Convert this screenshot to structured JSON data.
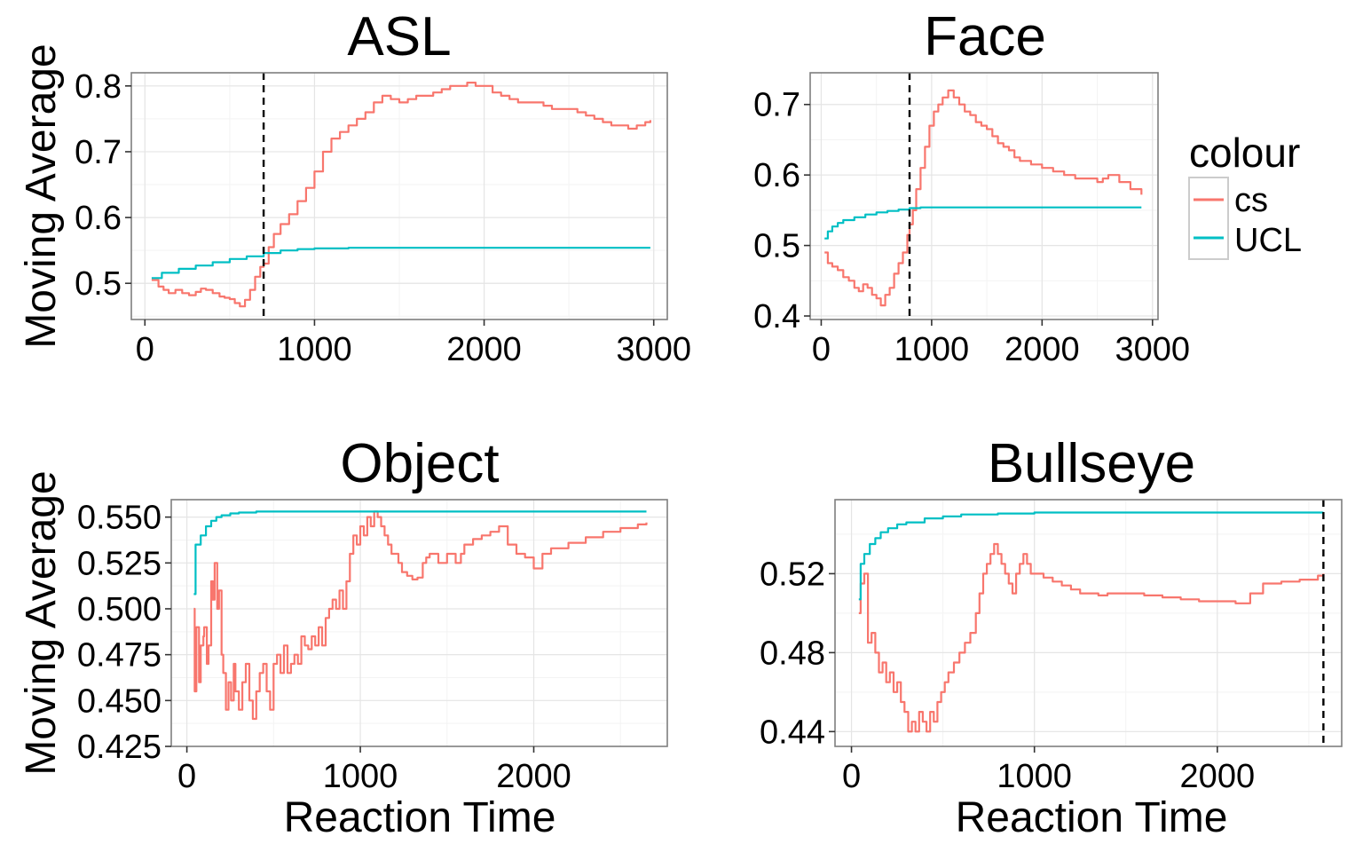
{
  "chart_data": [
    {
      "type": "line",
      "title": "ASL",
      "xlabel": "",
      "ylabel": "Moving Average",
      "xlim": [
        -80,
        3080
      ],
      "ylim": [
        0.445,
        0.82
      ],
      "xticks": [
        0,
        1000,
        2000,
        3000
      ],
      "xtick_labels": [
        "0",
        "1000",
        "2000",
        "3000"
      ],
      "yticks": [
        0.5,
        0.6,
        0.7,
        0.8
      ],
      "ytick_labels": [
        "0.5",
        "0.6",
        "0.7",
        "0.8"
      ],
      "vline": 700,
      "grid": true,
      "series": [
        {
          "name": "cs",
          "color": "#F8766D",
          "x": [
            40,
            80,
            110,
            140,
            180,
            220,
            260,
            300,
            330,
            360,
            400,
            440,
            470,
            500,
            530,
            560,
            590,
            620,
            650,
            680,
            700,
            730,
            760,
            800,
            850,
            900,
            950,
            1000,
            1050,
            1100,
            1150,
            1200,
            1250,
            1300,
            1350,
            1400,
            1450,
            1500,
            1550,
            1600,
            1650,
            1700,
            1750,
            1800,
            1850,
            1900,
            1950,
            2000,
            2050,
            2100,
            2150,
            2200,
            2250,
            2300,
            2350,
            2400,
            2450,
            2500,
            2550,
            2600,
            2650,
            2700,
            2750,
            2800,
            2850,
            2900,
            2950,
            2980
          ],
          "y": [
            0.505,
            0.495,
            0.49,
            0.485,
            0.49,
            0.485,
            0.482,
            0.487,
            0.492,
            0.49,
            0.485,
            0.48,
            0.478,
            0.476,
            0.47,
            0.465,
            0.475,
            0.49,
            0.51,
            0.525,
            0.53,
            0.555,
            0.575,
            0.59,
            0.605,
            0.625,
            0.645,
            0.67,
            0.7,
            0.72,
            0.73,
            0.74,
            0.75,
            0.76,
            0.775,
            0.785,
            0.78,
            0.775,
            0.78,
            0.785,
            0.785,
            0.79,
            0.795,
            0.8,
            0.8,
            0.805,
            0.8,
            0.8,
            0.79,
            0.785,
            0.78,
            0.775,
            0.775,
            0.775,
            0.77,
            0.765,
            0.765,
            0.765,
            0.76,
            0.755,
            0.75,
            0.745,
            0.74,
            0.74,
            0.735,
            0.74,
            0.745,
            0.748
          ]
        },
        {
          "name": "UCL",
          "color": "#00BFC4",
          "x": [
            40,
            100,
            200,
            300,
            400,
            500,
            600,
            700,
            800,
            900,
            1000,
            1200,
            1400,
            1600,
            2000,
            2500,
            2980
          ],
          "y": [
            0.508,
            0.516,
            0.522,
            0.527,
            0.532,
            0.537,
            0.541,
            0.546,
            0.55,
            0.552,
            0.553,
            0.554,
            0.554,
            0.554,
            0.554,
            0.554,
            0.554
          ]
        }
      ]
    },
    {
      "type": "line",
      "title": "Face",
      "xlabel": "",
      "ylabel": "",
      "xlim": [
        -100,
        3050
      ],
      "ylim": [
        0.395,
        0.745
      ],
      "xticks": [
        0,
        1000,
        2000,
        3000
      ],
      "xtick_labels": [
        "0",
        "1000",
        "2000",
        "3000"
      ],
      "yticks": [
        0.4,
        0.5,
        0.6,
        0.7
      ],
      "ytick_labels": [
        "0.4",
        "0.5",
        "0.6",
        "0.7"
      ],
      "vline": 800,
      "grid": true,
      "series": [
        {
          "name": "cs",
          "color": "#F8766D",
          "x": [
            30,
            60,
            100,
            150,
            200,
            250,
            300,
            340,
            380,
            420,
            460,
            500,
            540,
            580,
            620,
            660,
            700,
            740,
            780,
            800,
            830,
            860,
            900,
            940,
            980,
            1020,
            1060,
            1100,
            1150,
            1200,
            1250,
            1300,
            1350,
            1400,
            1450,
            1500,
            1550,
            1600,
            1650,
            1700,
            1750,
            1800,
            1900,
            2000,
            2100,
            2200,
            2300,
            2400,
            2500,
            2550,
            2600,
            2700,
            2800,
            2900
          ],
          "y": [
            0.49,
            0.475,
            0.47,
            0.465,
            0.455,
            0.45,
            0.44,
            0.435,
            0.445,
            0.44,
            0.43,
            0.425,
            0.415,
            0.43,
            0.44,
            0.46,
            0.475,
            0.49,
            0.515,
            0.53,
            0.55,
            0.58,
            0.61,
            0.64,
            0.67,
            0.69,
            0.7,
            0.71,
            0.72,
            0.71,
            0.7,
            0.69,
            0.685,
            0.675,
            0.67,
            0.665,
            0.655,
            0.645,
            0.64,
            0.635,
            0.625,
            0.62,
            0.615,
            0.61,
            0.605,
            0.6,
            0.595,
            0.595,
            0.59,
            0.595,
            0.6,
            0.59,
            0.58,
            0.572
          ]
        },
        {
          "name": "UCL",
          "color": "#00BFC4",
          "x": [
            30,
            60,
            100,
            150,
            200,
            300,
            400,
            500,
            600,
            700,
            800,
            900,
            1000,
            1500,
            2000,
            2500,
            2900
          ],
          "y": [
            0.51,
            0.52,
            0.527,
            0.532,
            0.536,
            0.54,
            0.544,
            0.547,
            0.549,
            0.551,
            0.553,
            0.554,
            0.554,
            0.554,
            0.554,
            0.554,
            0.554
          ]
        }
      ]
    },
    {
      "type": "line",
      "title": "Object",
      "xlabel": "Reaction Time",
      "ylabel": "Moving Average",
      "xlim": [
        -90,
        2770
      ],
      "ylim": [
        0.425,
        0.5595
      ],
      "xticks": [
        0,
        1000,
        2000
      ],
      "xtick_labels": [
        "0",
        "1000",
        "2000"
      ],
      "yticks": [
        0.425,
        0.45,
        0.475,
        0.5,
        0.525,
        0.55
      ],
      "ytick_labels": [
        "0.425",
        "0.450",
        "0.475",
        "0.500",
        "0.525",
        "0.550"
      ],
      "vline": null,
      "grid": true,
      "series": [
        {
          "name": "cs",
          "color": "#F8766D",
          "x": [
            40,
            45,
            55,
            70,
            80,
            95,
            100,
            115,
            125,
            140,
            150,
            160,
            175,
            185,
            200,
            210,
            225,
            240,
            255,
            270,
            280,
            300,
            320,
            340,
            360,
            380,
            400,
            420,
            440,
            460,
            480,
            500,
            520,
            540,
            560,
            580,
            600,
            620,
            640,
            660,
            680,
            700,
            720,
            740,
            760,
            780,
            800,
            820,
            840,
            860,
            880,
            900,
            920,
            940,
            960,
            980,
            1000,
            1020,
            1040,
            1060,
            1080,
            1100,
            1120,
            1140,
            1160,
            1180,
            1200,
            1220,
            1240,
            1270,
            1300,
            1330,
            1360,
            1380,
            1400,
            1450,
            1500,
            1550,
            1580,
            1600,
            1650,
            1700,
            1750,
            1800,
            1850,
            1900,
            1950,
            2000,
            2050,
            2100,
            2200,
            2300,
            2400,
            2500,
            2600,
            2650
          ],
          "y": [
            0.5,
            0.455,
            0.49,
            0.46,
            0.48,
            0.485,
            0.49,
            0.47,
            0.48,
            0.515,
            0.505,
            0.525,
            0.5,
            0.51,
            0.475,
            0.465,
            0.445,
            0.46,
            0.45,
            0.47,
            0.455,
            0.445,
            0.46,
            0.47,
            0.45,
            0.44,
            0.455,
            0.465,
            0.47,
            0.455,
            0.445,
            0.47,
            0.475,
            0.465,
            0.48,
            0.465,
            0.47,
            0.475,
            0.47,
            0.485,
            0.48,
            0.478,
            0.485,
            0.48,
            0.49,
            0.48,
            0.495,
            0.5,
            0.505,
            0.5,
            0.51,
            0.5,
            0.515,
            0.53,
            0.54,
            0.535,
            0.545,
            0.54,
            0.55,
            0.545,
            0.553,
            0.55,
            0.545,
            0.54,
            0.535,
            0.53,
            0.53,
            0.525,
            0.52,
            0.518,
            0.516,
            0.517,
            0.525,
            0.528,
            0.53,
            0.525,
            0.53,
            0.525,
            0.53,
            0.535,
            0.538,
            0.54,
            0.542,
            0.545,
            0.535,
            0.53,
            0.528,
            0.522,
            0.53,
            0.533,
            0.536,
            0.539,
            0.542,
            0.544,
            0.546,
            0.547
          ]
        },
        {
          "name": "UCL",
          "color": "#00BFC4",
          "x": [
            40,
            50,
            80,
            110,
            140,
            170,
            200,
            250,
            300,
            400,
            500,
            700,
            1000,
            1500,
            2000,
            2650
          ],
          "y": [
            0.508,
            0.535,
            0.54,
            0.545,
            0.548,
            0.55,
            0.551,
            0.552,
            0.5525,
            0.553,
            0.553,
            0.553,
            0.553,
            0.553,
            0.553,
            0.553
          ]
        }
      ]
    },
    {
      "type": "line",
      "title": "Bullseye",
      "xlabel": "Reaction Time",
      "ylabel": "",
      "xlim": [
        -90,
        2680
      ],
      "ylim": [
        0.4325,
        0.5575
      ],
      "xticks": [
        0,
        1000,
        2000
      ],
      "xtick_labels": [
        "0",
        "1000",
        "2000"
      ],
      "yticks": [
        0.44,
        0.48,
        0.52
      ],
      "ytick_labels": [
        "0.44",
        "0.48",
        "0.52"
      ],
      "vline": 2580,
      "grid": true,
      "series": [
        {
          "name": "cs",
          "color": "#F8766D",
          "x": [
            40,
            50,
            70,
            90,
            110,
            130,
            150,
            170,
            190,
            210,
            230,
            250,
            270,
            290,
            310,
            330,
            350,
            370,
            390,
            410,
            430,
            450,
            470,
            490,
            510,
            530,
            560,
            590,
            620,
            650,
            680,
            700,
            720,
            740,
            760,
            780,
            800,
            820,
            840,
            860,
            880,
            900,
            920,
            940,
            960,
            980,
            1000,
            1050,
            1100,
            1150,
            1200,
            1250,
            1300,
            1350,
            1400,
            1500,
            1600,
            1700,
            1800,
            1900,
            2000,
            2100,
            2140,
            2180,
            2250,
            2350,
            2450,
            2550,
            2580
          ],
          "y": [
            0.5,
            0.515,
            0.52,
            0.485,
            0.49,
            0.48,
            0.47,
            0.475,
            0.465,
            0.47,
            0.46,
            0.465,
            0.455,
            0.45,
            0.44,
            0.445,
            0.44,
            0.45,
            0.445,
            0.44,
            0.45,
            0.445,
            0.455,
            0.46,
            0.465,
            0.47,
            0.475,
            0.48,
            0.485,
            0.49,
            0.5,
            0.51,
            0.52,
            0.525,
            0.53,
            0.535,
            0.53,
            0.525,
            0.52,
            0.515,
            0.51,
            0.52,
            0.525,
            0.53,
            0.525,
            0.52,
            0.52,
            0.518,
            0.516,
            0.514,
            0.512,
            0.51,
            0.51,
            0.509,
            0.51,
            0.51,
            0.509,
            0.508,
            0.507,
            0.506,
            0.506,
            0.505,
            0.505,
            0.51,
            0.515,
            0.516,
            0.517,
            0.519,
            0.52
          ]
        },
        {
          "name": "UCL",
          "color": "#00BFC4",
          "x": [
            40,
            50,
            70,
            100,
            130,
            160,
            200,
            250,
            300,
            400,
            500,
            600,
            800,
            1000,
            1500,
            2000,
            2580
          ],
          "y": [
            0.507,
            0.525,
            0.53,
            0.535,
            0.538,
            0.541,
            0.543,
            0.545,
            0.546,
            0.548,
            0.549,
            0.55,
            0.5505,
            0.551,
            0.551,
            0.551,
            0.551
          ]
        }
      ]
    }
  ],
  "legend": {
    "title": "colour",
    "items": [
      {
        "label": "cs",
        "color": "#F8766D"
      },
      {
        "label": "UCL",
        "color": "#00BFC4"
      }
    ],
    "placement": "right"
  }
}
